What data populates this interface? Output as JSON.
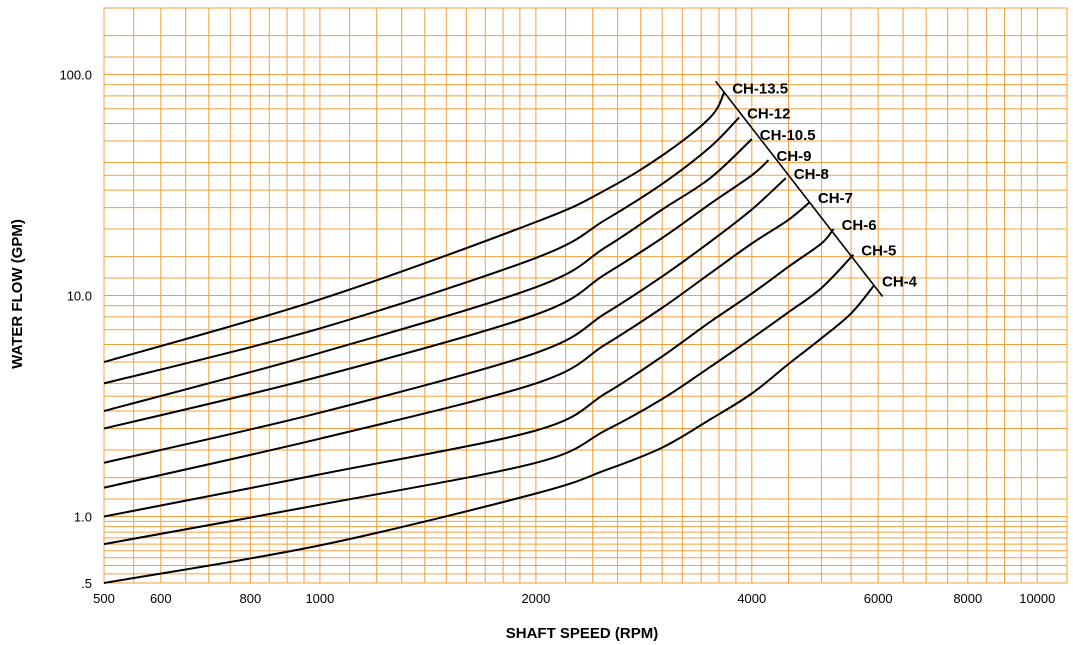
{
  "chart_data": {
    "type": "line",
    "title": "",
    "xlabel": "SHAFT SPEED (RPM)",
    "ylabel": "WATER FLOW (GPM)",
    "x_scale": "log",
    "y_scale": "log",
    "xlim": [
      500,
      11000
    ],
    "ylim": [
      0.5,
      200
    ],
    "grid": true,
    "grid_color": "#f0a040",
    "line_color": "#000000",
    "x_tick_labels": [
      {
        "value": 500,
        "label": "500"
      },
      {
        "value": 600,
        "label": "600"
      },
      {
        "value": 800,
        "label": "800"
      },
      {
        "value": 1000,
        "label": "1000"
      },
      {
        "value": 2000,
        "label": "2000"
      },
      {
        "value": 4000,
        "label": "4000"
      },
      {
        "value": 6000,
        "label": "6000"
      },
      {
        "value": 8000,
        "label": "8000"
      },
      {
        "value": 10000,
        "label": "10000"
      }
    ],
    "y_tick_labels": [
      {
        "value": 0.5,
        "label": ".5"
      },
      {
        "value": 1,
        "label": "1.0"
      },
      {
        "value": 10,
        "label": "10.0"
      },
      {
        "value": 100,
        "label": "100.0"
      }
    ],
    "series": [
      {
        "name": "CH-13.5",
        "points": [
          [
            500,
            5.0
          ],
          [
            1000,
            9.6
          ],
          [
            2000,
            21.5
          ],
          [
            2500,
            30
          ],
          [
            3000,
            43
          ],
          [
            3500,
            64
          ],
          [
            3660,
            83
          ]
        ]
      },
      {
        "name": "CH-12",
        "points": [
          [
            500,
            4.0
          ],
          [
            1000,
            7.1
          ],
          [
            2000,
            14.8
          ],
          [
            2500,
            22
          ],
          [
            3000,
            32
          ],
          [
            3500,
            47
          ],
          [
            3840,
            64
          ]
        ]
      },
      {
        "name": "CH-10.5",
        "points": [
          [
            500,
            3.0
          ],
          [
            1000,
            5.5
          ],
          [
            2000,
            10.9
          ],
          [
            2500,
            16.5
          ],
          [
            3000,
            24.5
          ],
          [
            3500,
            34
          ],
          [
            4000,
            51
          ]
        ]
      },
      {
        "name": "CH-9",
        "points": [
          [
            500,
            2.5
          ],
          [
            1000,
            4.3
          ],
          [
            2000,
            8.2
          ],
          [
            2500,
            12.5
          ],
          [
            3000,
            18.2
          ],
          [
            3500,
            26
          ],
          [
            4000,
            35
          ],
          [
            4220,
            41
          ]
        ]
      },
      {
        "name": "CH-8",
        "points": [
          [
            500,
            1.75
          ],
          [
            1000,
            2.95
          ],
          [
            2000,
            5.5
          ],
          [
            2500,
            8.3
          ],
          [
            3000,
            12.2
          ],
          [
            3500,
            17.5
          ],
          [
            4000,
            24.5
          ],
          [
            4460,
            34
          ]
        ]
      },
      {
        "name": "CH-7",
        "points": [
          [
            500,
            1.35
          ],
          [
            1000,
            2.25
          ],
          [
            2000,
            4.0
          ],
          [
            2500,
            6.0
          ],
          [
            3000,
            8.8
          ],
          [
            3500,
            12.6
          ],
          [
            4000,
            17.2
          ],
          [
            4500,
            22
          ],
          [
            4820,
            26.5
          ]
        ]
      },
      {
        "name": "CH-6",
        "points": [
          [
            500,
            1.0
          ],
          [
            1000,
            1.55
          ],
          [
            2000,
            2.45
          ],
          [
            2500,
            3.6
          ],
          [
            3000,
            5.3
          ],
          [
            3500,
            7.6
          ],
          [
            4000,
            10.2
          ],
          [
            4500,
            13.5
          ],
          [
            5000,
            17.2
          ],
          [
            5200,
            20
          ]
        ]
      },
      {
        "name": "CH-5",
        "points": [
          [
            500,
            0.75
          ],
          [
            1000,
            1.13
          ],
          [
            2000,
            1.75
          ],
          [
            2500,
            2.45
          ],
          [
            3000,
            3.4
          ],
          [
            3500,
            4.75
          ],
          [
            4000,
            6.4
          ],
          [
            4500,
            8.4
          ],
          [
            5000,
            10.8
          ],
          [
            5540,
            15.3
          ]
        ]
      },
      {
        "name": "CH-4",
        "points": [
          [
            500,
            0.5
          ],
          [
            1000,
            0.74
          ],
          [
            2000,
            1.27
          ],
          [
            2500,
            1.62
          ],
          [
            3000,
            2.05
          ],
          [
            3500,
            2.75
          ],
          [
            4000,
            3.6
          ],
          [
            4500,
            4.9
          ],
          [
            5000,
            6.4
          ],
          [
            5500,
            8.3
          ],
          [
            5920,
            11.1
          ]
        ]
      }
    ]
  }
}
